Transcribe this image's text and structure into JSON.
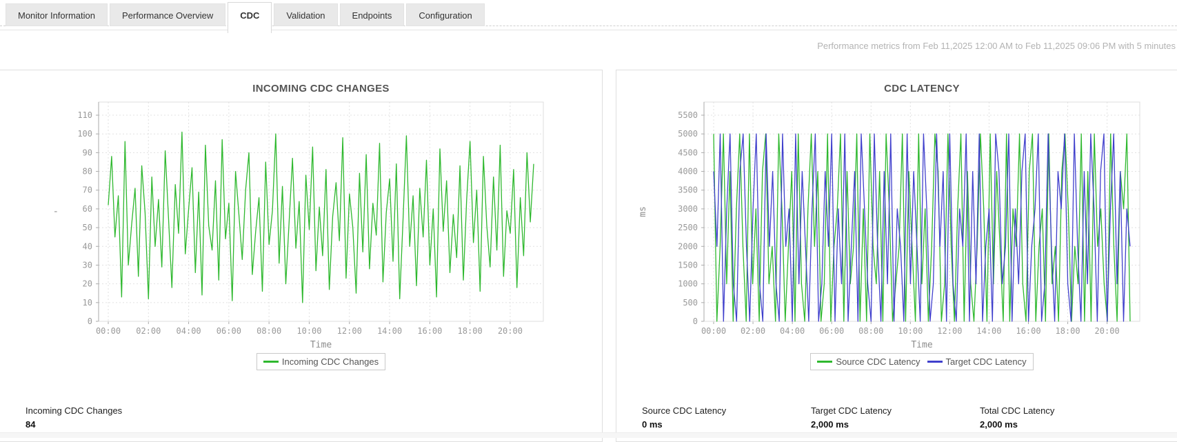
{
  "tabs": {
    "items": [
      {
        "label": "Monitor Information",
        "active": false
      },
      {
        "label": "Performance Overview",
        "active": false
      },
      {
        "label": "CDC",
        "active": true
      },
      {
        "label": "Validation",
        "active": false
      },
      {
        "label": "Endpoints",
        "active": false
      },
      {
        "label": "Configuration",
        "active": false
      }
    ]
  },
  "header": {
    "metrics_note": "Performance metrics from Feb 11,2025 12:00 AM to Feb 11,2025 09:06 PM with 5 minutes"
  },
  "colors": {
    "series_green": "#2eb82e",
    "series_blue": "#4040cc",
    "grid": "#e1e1e1",
    "axis": "#aaaaaa",
    "tick_text": "#999999"
  },
  "chart_data": [
    {
      "type": "line",
      "title": "INCOMING CDC CHANGES",
      "xlabel": "Time",
      "ylabel": "'",
      "x_hours": 21.17,
      "x_ticks": [
        "00:00",
        "02:00",
        "04:00",
        "06:00",
        "08:00",
        "10:00",
        "12:00",
        "14:00",
        "16:00",
        "18:00",
        "20:00"
      ],
      "y_ticks": [
        "0",
        "10",
        "20",
        "30",
        "40",
        "50",
        "60",
        "70",
        "80",
        "90",
        "100",
        "110"
      ],
      "y_max": 117,
      "legend_position": "bottom",
      "series": [
        {
          "name": "Incoming CDC Changes",
          "color": "#2eb82e",
          "values": [
            62,
            88,
            45,
            67,
            13,
            96,
            30,
            52,
            71,
            24,
            83,
            58,
            12,
            77,
            40,
            65,
            29,
            91,
            55,
            18,
            73,
            47,
            101,
            36,
            60,
            82,
            26,
            69,
            14,
            94,
            51,
            38,
            75,
            22,
            97,
            44,
            63,
            11,
            80,
            57,
            33,
            70,
            90,
            25,
            48,
            66,
            16,
            85,
            41,
            59,
            100,
            31,
            72,
            20,
            53,
            87,
            39,
            64,
            10,
            78,
            49,
            93,
            27,
            61,
            35,
            81,
            17,
            56,
            74,
            43,
            98,
            23,
            68,
            50,
            15,
            79,
            37,
            89,
            28,
            63,
            46,
            95,
            21,
            58,
            76,
            32,
            84,
            12,
            54,
            99,
            40,
            67,
            19,
            71,
            45,
            86,
            30,
            60,
            13,
            92,
            48,
            75,
            26,
            57,
            34,
            83,
            22,
            65,
            96,
            42,
            70,
            16,
            88,
            51,
            29,
            77,
            38,
            94,
            24,
            59,
            47,
            81,
            18,
            66,
            35,
            90,
            53,
            84
          ]
        }
      ]
    },
    {
      "type": "line",
      "title": "CDC LATENCY",
      "xlabel": "Time",
      "ylabel": "ms",
      "x_hours": 21.17,
      "x_ticks": [
        "00:00",
        "02:00",
        "04:00",
        "06:00",
        "08:00",
        "10:00",
        "12:00",
        "14:00",
        "16:00",
        "18:00",
        "20:00"
      ],
      "y_ticks": [
        "0",
        "500",
        "1000",
        "1500",
        "2000",
        "2500",
        "3000",
        "3500",
        "4000",
        "4500",
        "5000",
        "5500"
      ],
      "y_max": 5850,
      "legend_position": "bottom",
      "series": [
        {
          "name": "Source CDC Latency",
          "color": "#2eb82e",
          "values": [
            5000,
            0,
            2000,
            5000,
            1000,
            4000,
            0,
            3000,
            5000,
            2000,
            0,
            5000,
            1000,
            3000,
            0,
            4000,
            5000,
            1000,
            2000,
            0,
            5000,
            3000,
            0,
            2000,
            4000,
            0,
            5000,
            1000,
            0,
            3000,
            5000,
            2000,
            4000,
            0,
            1000,
            5000,
            0,
            2000,
            3000,
            5000,
            0,
            4000,
            1000,
            2000,
            5000,
            0,
            3000,
            0,
            5000,
            2000,
            1000,
            4000,
            0,
            5000,
            3000,
            0,
            1000,
            2000,
            5000,
            0,
            4000,
            2000,
            0,
            5000,
            1000,
            3000,
            0,
            2000,
            5000,
            4000,
            0,
            1000,
            5000,
            2000,
            0,
            3000,
            5000,
            0,
            4000,
            1000,
            0,
            2000,
            5000,
            3000,
            0,
            5000,
            1000,
            4000,
            2000,
            0,
            5000,
            0,
            3000,
            2000,
            5000,
            1000,
            0,
            4000,
            5000,
            0,
            2000,
            3000,
            0,
            5000,
            1000,
            2000,
            0,
            4000,
            5000,
            3000,
            0,
            2000,
            1000,
            5000,
            0,
            4000,
            0,
            5000,
            2000,
            3000,
            1000,
            0,
            5000,
            2000,
            0,
            4000,
            3000,
            5000,
            0
          ]
        },
        {
          "name": "Target CDC Latency",
          "color": "#4040cc",
          "values": [
            4000,
            2000,
            5000,
            0,
            3000,
            5000,
            1000,
            0,
            4000,
            5000,
            2000,
            0,
            3000,
            5000,
            1000,
            0,
            5000,
            2000,
            4000,
            1000,
            0,
            5000,
            2000,
            3000,
            0,
            5000,
            1000,
            4000,
            2000,
            0,
            3000,
            5000,
            0,
            1000,
            4000,
            2000,
            5000,
            0,
            3000,
            1000,
            5000,
            0,
            2000,
            4000,
            0,
            5000,
            3000,
            1000,
            0,
            5000,
            2000,
            0,
            4000,
            1000,
            5000,
            0,
            3000,
            2000,
            0,
            5000,
            1000,
            4000,
            2000,
            0,
            5000,
            3000,
            0,
            1000,
            5000,
            2000,
            4000,
            0,
            5000,
            1000,
            0,
            3000,
            2000,
            5000,
            0,
            4000,
            1000,
            5000,
            0,
            2000,
            3000,
            0,
            5000,
            4000,
            1000,
            2000,
            5000,
            0,
            3000,
            1000,
            4000,
            5000,
            0,
            2000,
            3000,
            5000,
            0,
            1000,
            5000,
            2000,
            0,
            4000,
            3000,
            5000,
            1000,
            0,
            5000,
            2000,
            0,
            4000,
            1000,
            5000,
            3000,
            0,
            4000,
            5000,
            0,
            3000,
            5000,
            1000,
            4000,
            0,
            3000,
            2000
          ]
        }
      ]
    }
  ],
  "stats": {
    "left": [
      {
        "label": "Incoming CDC Changes",
        "value": "84"
      }
    ],
    "right": [
      {
        "label": "Source CDC Latency",
        "value": "0 ms"
      },
      {
        "label": "Target CDC Latency",
        "value": "2,000 ms"
      },
      {
        "label": "Total CDC Latency",
        "value": "2,000 ms"
      }
    ]
  }
}
